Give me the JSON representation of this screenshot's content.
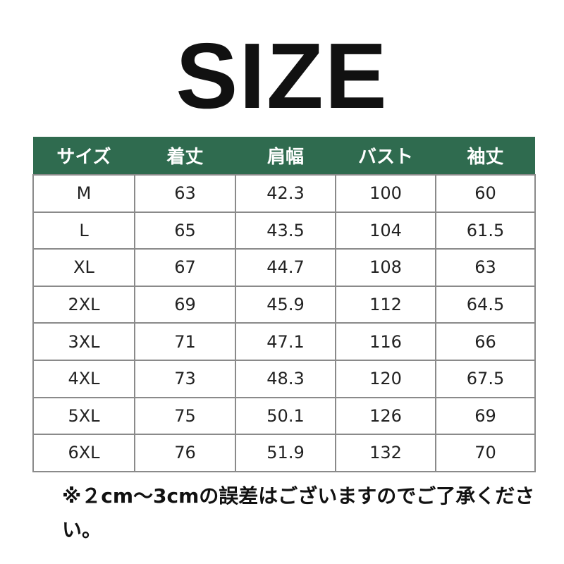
{
  "title": "SIZE",
  "header_color": "#2f6b4f",
  "table": {
    "headers": [
      "サイズ",
      "着丈",
      "肩幅",
      "バスト",
      "袖丈"
    ],
    "rows": [
      [
        "M",
        "63",
        "42.3",
        "100",
        "60"
      ],
      [
        "L",
        "65",
        "43.5",
        "104",
        "61.5"
      ],
      [
        "XL",
        "67",
        "44.7",
        "108",
        "63"
      ],
      [
        "2XL",
        "69",
        "45.9",
        "112",
        "64.5"
      ],
      [
        "3XL",
        "71",
        "47.1",
        "116",
        "66"
      ],
      [
        "4XL",
        "73",
        "48.3",
        "120",
        "67.5"
      ],
      [
        "5XL",
        "75",
        "50.1",
        "126",
        "69"
      ],
      [
        "6XL",
        "76",
        "51.9",
        "132",
        "70"
      ]
    ]
  },
  "note": "※２cm～3cmの誤差はございますのでご了承ください。"
}
